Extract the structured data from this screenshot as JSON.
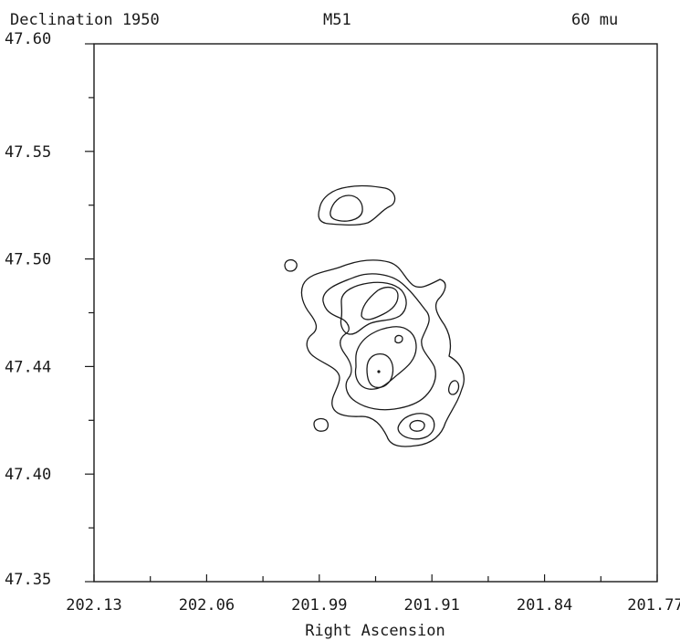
{
  "chart_data": {
    "type": "contour",
    "header_left": "Declination 1950",
    "title": "M51",
    "header_right": "60 mu",
    "xlabel": "Right Ascension",
    "ylabel": "",
    "xlim": [
      202.13,
      201.77
    ],
    "ylim": [
      47.35,
      47.6
    ],
    "xticks": [
      "202.13",
      "202.06",
      "201.99",
      "201.91",
      "201.84",
      "201.77"
    ],
    "yticks": [
      "47.60",
      "47.55",
      "47.50",
      "47.44",
      "47.40",
      "47.35"
    ],
    "grid": false,
    "legend": "none"
  }
}
